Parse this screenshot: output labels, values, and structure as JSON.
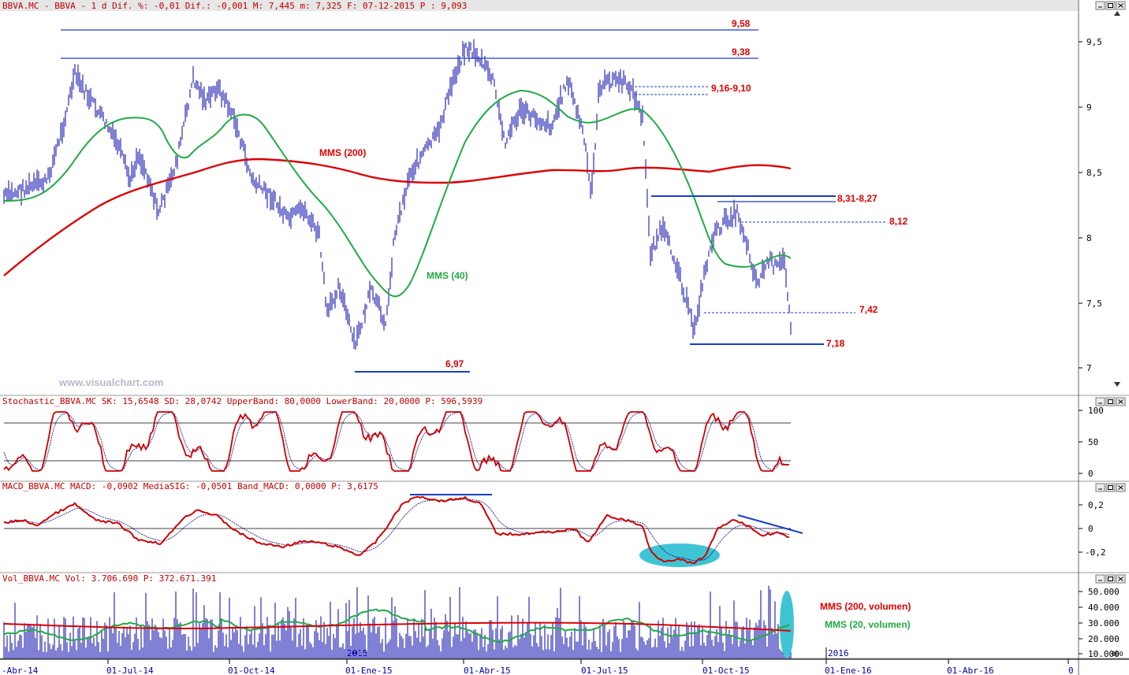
{
  "panels": {
    "price": {
      "header": "BBVA.MC - BBVA -  1 d Dif. %: -0,01 Dif.: -0,001 M: 7,445 m: 7,325 F: 07-12-2015 P : 9,093",
      "y_ticks": [
        "9,5",
        "9",
        "8,5",
        "8",
        "7,5",
        "7"
      ],
      "watermark": "www.visualchart.com"
    },
    "stochastic": {
      "header": "Stochastic_BBVA.MC SK: 15,6548 SD: 28,0742 UpperBand: 80,0000 LowerBand: 20,0000 P: 596,5939",
      "y_ticks": [
        "100",
        "50",
        "0"
      ]
    },
    "macd": {
      "header": "MACD_BBVA.MC MACD: -0,0902 MediaSIG: -0,0501 Band_MACD: 0,0000 P: 3,6175",
      "y_ticks": [
        "0,2",
        "0",
        "-0,2"
      ]
    },
    "volume": {
      "header": "Vol_BBVA.MC Vol: 3.706.690 P: 372.671.391",
      "y_ticks": [
        "50.000",
        "40.000",
        "30.000",
        "20.000",
        "10.000"
      ],
      "year_marks": [
        "2015",
        "2016"
      ],
      "corner_label": "000"
    }
  },
  "x_axis": {
    "labels": [
      "-Abr-14",
      "01-Jul-14",
      "01-Oct-14",
      "01-Ene-15",
      "01-Abr-15",
      "01-Jul-15",
      "01-Oct-15",
      "01-Ene-16",
      "01-Abr-16",
      "0"
    ]
  },
  "annotations": {
    "levels": [
      "9,58",
      "9,38",
      "9,16-9,10",
      "8,31-8,27",
      "8,12",
      "7,42",
      "7,18",
      "6,97"
    ],
    "mms200": "MMS (200)",
    "mms40": "MMS (40)",
    "vol_mms200": "MMS (200, volumen)",
    "vol_mms20": "MMS (20, volumen)"
  },
  "colors": {
    "price_bars": "#0000aa",
    "mms200": "#dd0000",
    "mms40": "#22aa44",
    "level_lines": "#1a3ec8",
    "annotation_text": "#dd0000",
    "highlight": "#3fc4d4",
    "header_text": "#c00000",
    "window_bar": "#e6e6e6"
  },
  "chart_data": {
    "type": "bar",
    "instrument": "BBVA.MC",
    "x_range": [
      "2014-04-01",
      "2016-04-01"
    ],
    "ylim": [
      6.8,
      9.75
    ],
    "x": [
      "2014-04",
      "2014-05",
      "2014-06",
      "2014-07",
      "2014-08",
      "2014-09",
      "2014-10",
      "2014-11",
      "2014-12",
      "2015-01",
      "2015-02",
      "2015-03",
      "2015-04",
      "2015-05",
      "2015-06",
      "2015-07",
      "2015-08",
      "2015-09",
      "2015-10",
      "2015-11",
      "2015-12"
    ],
    "series": [
      {
        "name": "BBVA.MC",
        "values": [
          8.3,
          8.8,
          9.2,
          8.8,
          8.9,
          9.2,
          8.3,
          8.1,
          7.6,
          7.3,
          8.1,
          8.9,
          9.4,
          9.0,
          9.0,
          9.1,
          8.6,
          7.6,
          8.1,
          7.9,
          7.4
        ]
      },
      {
        "name": "MMS (200)",
        "values": [
          7.7,
          8.0,
          8.3,
          8.4,
          8.5,
          8.6,
          8.6,
          8.6,
          8.55,
          8.5,
          8.45,
          8.45,
          8.5,
          8.55,
          8.55,
          8.6,
          8.6,
          8.6,
          8.55,
          8.55,
          8.55
        ]
      },
      {
        "name": "MMS (40)",
        "values": [
          8.3,
          8.6,
          8.8,
          8.9,
          8.7,
          8.8,
          8.9,
          8.6,
          8.1,
          7.7,
          7.6,
          8.4,
          9.0,
          9.1,
          8.8,
          8.8,
          8.5,
          8.0,
          7.8,
          7.8,
          7.85
        ]
      }
    ],
    "hlines": [
      9.58,
      9.38,
      9.16,
      9.1,
      8.31,
      8.27,
      8.12,
      7.42,
      7.18,
      6.97
    ],
    "stochastic": {
      "sk": 15.6548,
      "sd": 28.0742,
      "upper": 80,
      "lower": 20,
      "ylim": [
        0,
        100
      ]
    },
    "macd": {
      "macd": -0.0902,
      "signal": -0.0501,
      "band": 0,
      "ylim": [
        -0.3,
        0.3
      ]
    },
    "volume": {
      "last": 3706690,
      "ylim": [
        0,
        55000
      ]
    }
  }
}
